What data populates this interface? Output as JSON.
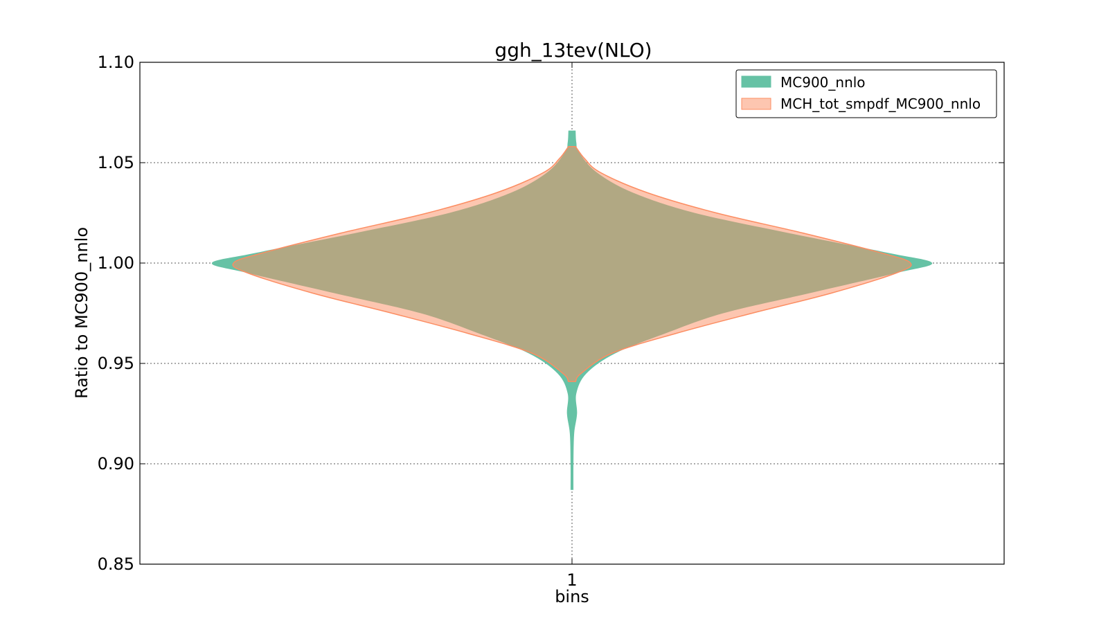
{
  "chart_data": {
    "type": "violin",
    "title": "ggh_13tev(NLO)",
    "xlabel": "bins",
    "ylabel": "Ratio to MC900_nnlo",
    "categories": [
      "1"
    ],
    "ylim": [
      0.85,
      1.1
    ],
    "yticks": [
      0.85,
      0.9,
      0.95,
      1.0,
      1.05,
      1.1
    ],
    "ytick_labels": [
      "0.85",
      "0.90",
      "0.95",
      "1.00",
      "1.05",
      "1.10"
    ],
    "grid": true,
    "legend_position": "top-right",
    "series": [
      {
        "name": "MC900_nnlo",
        "color": "#66c2a5",
        "profile": [
          [
            0.887,
            0.004
          ],
          [
            0.9,
            0.004
          ],
          [
            0.915,
            0.006
          ],
          [
            0.925,
            0.014
          ],
          [
            0.935,
            0.012
          ],
          [
            0.945,
            0.04
          ],
          [
            0.955,
            0.12
          ],
          [
            0.965,
            0.26
          ],
          [
            0.975,
            0.42
          ],
          [
            0.985,
            0.66
          ],
          [
            0.995,
            0.9
          ],
          [
            1.0,
            1.0
          ],
          [
            1.005,
            0.88
          ],
          [
            1.015,
            0.6
          ],
          [
            1.025,
            0.34
          ],
          [
            1.035,
            0.17
          ],
          [
            1.045,
            0.07
          ],
          [
            1.055,
            0.02
          ],
          [
            1.06,
            0.012
          ],
          [
            1.066,
            0.01
          ]
        ]
      },
      {
        "name": "MCH_tot_smpdf_MC900_nnlo",
        "color": "#fc8d62",
        "profile": [
          [
            0.941,
            0.01
          ],
          [
            0.945,
            0.025
          ],
          [
            0.955,
            0.11
          ],
          [
            0.965,
            0.29
          ],
          [
            0.975,
            0.5
          ],
          [
            0.985,
            0.72
          ],
          [
            0.995,
            0.9
          ],
          [
            1.0,
            0.94
          ],
          [
            1.005,
            0.86
          ],
          [
            1.015,
            0.64
          ],
          [
            1.025,
            0.4
          ],
          [
            1.035,
            0.21
          ],
          [
            1.045,
            0.08
          ],
          [
            1.052,
            0.035
          ],
          [
            1.058,
            0.01
          ]
        ]
      }
    ]
  }
}
